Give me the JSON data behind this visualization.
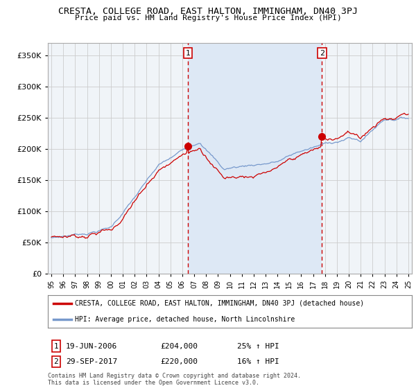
{
  "title": "CRESTA, COLLEGE ROAD, EAST HALTON, IMMINGHAM, DN40 3PJ",
  "subtitle": "Price paid vs. HM Land Registry's House Price Index (HPI)",
  "legend_line1": "CRESTA, COLLEGE ROAD, EAST HALTON, IMMINGHAM, DN40 3PJ (detached house)",
  "legend_line2": "HPI: Average price, detached house, North Lincolnshire",
  "sale1_date": "19-JUN-2006",
  "sale1_price": "£204,000",
  "sale1_hpi": "25% ↑ HPI",
  "sale2_date": "29-SEP-2017",
  "sale2_price": "£220,000",
  "sale2_hpi": "16% ↑ HPI",
  "footnote": "Contains HM Land Registry data © Crown copyright and database right 2024.\nThis data is licensed under the Open Government Licence v3.0.",
  "red_color": "#cc0000",
  "blue_color": "#7799cc",
  "fill_color": "#dde8f5",
  "vline_color": "#cc0000",
  "grid_color": "#cccccc",
  "bg_color": "#f0f4f8",
  "ylim": [
    0,
    370000
  ],
  "yticks": [
    0,
    50000,
    100000,
    150000,
    200000,
    250000,
    300000,
    350000
  ],
  "year_start": 1995,
  "year_end": 2025,
  "sale1_year": 2006.47,
  "sale2_year": 2017.75,
  "sale1_price_val": 204000,
  "sale2_price_val": 220000
}
